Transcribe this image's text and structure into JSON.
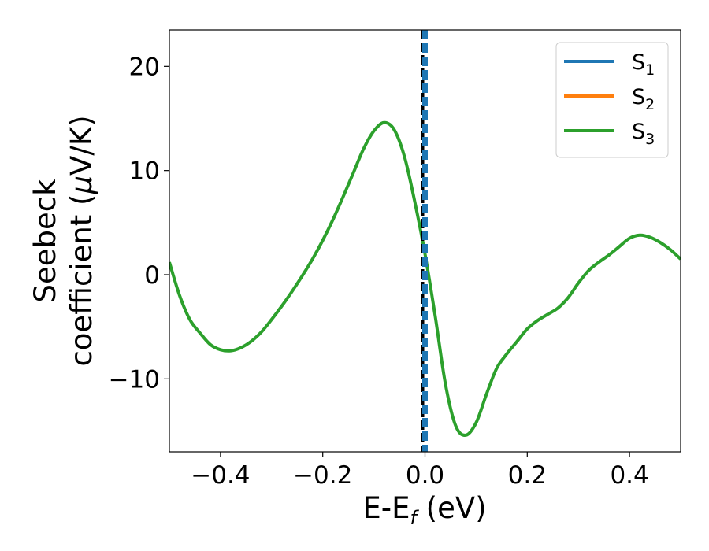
{
  "chart_data": {
    "type": "line",
    "xlabel": "E-E",
    "xlabel_sub": "f",
    "xlabel_unit": " (eV)",
    "ylabel_line1": "Seebeck",
    "ylabel_line2_prefix": "coefficient  (",
    "ylabel_mu": "μ",
    "ylabel_line2_suffix": "V/K)",
    "xlim": [
      -0.5,
      0.5
    ],
    "ylim": [
      -17.0,
      23.5
    ],
    "xticks": [
      -0.4,
      -0.2,
      0.0,
      0.2,
      0.4
    ],
    "xtick_labels": [
      "−0.4",
      "−0.2",
      "0.0",
      "0.2",
      "0.4"
    ],
    "yticks": [
      -10,
      0,
      10,
      20
    ],
    "ytick_labels": [
      "−10",
      "0",
      "10",
      "20"
    ],
    "grid": false,
    "legend_position": "top-right",
    "series": [
      {
        "name": "S",
        "sub": "1",
        "color": "#1f77b4",
        "x": [],
        "y": []
      },
      {
        "name": "S",
        "sub": "2",
        "color": "#ff7f0e",
        "x": [],
        "y": []
      },
      {
        "name": "S",
        "sub": "3",
        "color": "#2ca02c",
        "x": [
          -0.5,
          -0.48,
          -0.46,
          -0.44,
          -0.42,
          -0.4,
          -0.38,
          -0.36,
          -0.34,
          -0.32,
          -0.3,
          -0.28,
          -0.26,
          -0.24,
          -0.22,
          -0.2,
          -0.18,
          -0.16,
          -0.14,
          -0.12,
          -0.1,
          -0.08,
          -0.06,
          -0.04,
          -0.02,
          0.0,
          0.02,
          0.04,
          0.06,
          0.08,
          0.1,
          0.12,
          0.14,
          0.16,
          0.18,
          0.2,
          0.22,
          0.24,
          0.26,
          0.28,
          0.3,
          0.32,
          0.34,
          0.36,
          0.38,
          0.4,
          0.42,
          0.44,
          0.46,
          0.48,
          0.5
        ],
        "y": [
          1.2,
          -2.0,
          -4.3,
          -5.6,
          -6.7,
          -7.2,
          -7.3,
          -7.0,
          -6.4,
          -5.5,
          -4.3,
          -3.0,
          -1.6,
          -0.1,
          1.5,
          3.3,
          5.3,
          7.5,
          9.8,
          12.1,
          13.8,
          14.6,
          13.9,
          11.3,
          7.0,
          2.0,
          -4.0,
          -10.5,
          -14.5,
          -15.4,
          -14.2,
          -11.5,
          -9.0,
          -7.6,
          -6.4,
          -5.2,
          -4.4,
          -3.8,
          -3.2,
          -2.2,
          -0.8,
          0.4,
          1.2,
          1.9,
          2.7,
          3.5,
          3.8,
          3.6,
          3.1,
          2.4,
          1.5
        ]
      }
    ],
    "vertical_markers": [
      {
        "x": -0.005,
        "color": "#000000",
        "style": "dashed"
      },
      {
        "x": 0.0,
        "color": "#1f77b4",
        "style": "dashed"
      }
    ]
  }
}
